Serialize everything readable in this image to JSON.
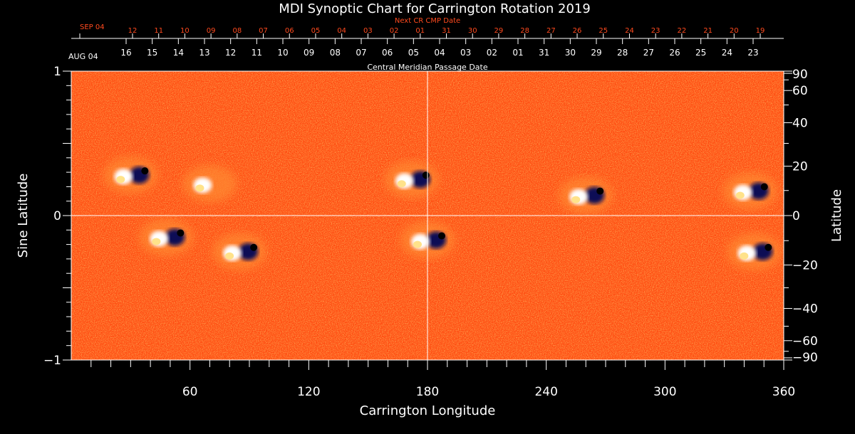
{
  "chart_data": {
    "type": "heatmap",
    "title": "MDI Synoptic Chart for Carrington Rotation 2019",
    "xlabel": "Carrington Longitude",
    "ylabel_left": "Sine Latitude",
    "ylabel_right": "Latitude",
    "xlim": [
      0,
      360
    ],
    "ylim": [
      -1,
      1
    ],
    "x_ticks": [
      60,
      120,
      180,
      240,
      300,
      360
    ],
    "x_minor_step": 10,
    "y_left_ticks": [
      {
        "value": 1,
        "label": "1"
      },
      {
        "value": 0,
        "label": "0"
      },
      {
        "value": -1,
        "label": "−1"
      }
    ],
    "y_right_ticks": [
      {
        "deg": 90,
        "label": "90"
      },
      {
        "deg": 60,
        "label": "60"
      },
      {
        "deg": 40,
        "label": "40"
      },
      {
        "deg": 20,
        "label": "20"
      },
      {
        "deg": 0,
        "label": "0"
      },
      {
        "deg": -20,
        "label": "−20"
      },
      {
        "deg": -40,
        "label": "−40"
      },
      {
        "deg": -60,
        "label": "−60"
      },
      {
        "deg": -90,
        "label": "−90"
      }
    ],
    "crosshair": {
      "longitude": 180,
      "sine_latitude": 0
    },
    "top_axis_upper": {
      "title": "Next CR CMP Date",
      "start_label": "SEP 04",
      "days": [
        "12",
        "11",
        "10",
        "09",
        "08",
        "07",
        "06",
        "05",
        "04",
        "03",
        "02",
        "01",
        "31",
        "30",
        "29",
        "28",
        "27",
        "26",
        "25",
        "24",
        "23",
        "22",
        "21",
        "20",
        "19"
      ],
      "color": "#ff4a1e"
    },
    "top_axis_lower": {
      "title": "Central Meridian Passage Date",
      "start_label": "AUG 04",
      "days": [
        "16",
        "15",
        "14",
        "13",
        "12",
        "11",
        "10",
        "09",
        "08",
        "07",
        "06",
        "05",
        "04",
        "03",
        "02",
        "01",
        "31",
        "30",
        "29",
        "28",
        "27",
        "26",
        "25",
        "24",
        "23"
      ],
      "color": "#ffffff"
    },
    "active_regions": [
      {
        "lon": 30,
        "sinlat": 0.28,
        "polarity": "bipolar"
      },
      {
        "lon": 70,
        "sinlat": 0.22,
        "polarity": "positive"
      },
      {
        "lon": 48,
        "sinlat": -0.15,
        "polarity": "bipolar"
      },
      {
        "lon": 85,
        "sinlat": -0.25,
        "polarity": "bipolar"
      },
      {
        "lon": 172,
        "sinlat": 0.25,
        "polarity": "bipolar"
      },
      {
        "lon": 180,
        "sinlat": -0.17,
        "polarity": "bipolar"
      },
      {
        "lon": 260,
        "sinlat": 0.14,
        "polarity": "bipolar"
      },
      {
        "lon": 343,
        "sinlat": 0.17,
        "polarity": "bipolar"
      },
      {
        "lon": 345,
        "sinlat": -0.25,
        "polarity": "bipolar"
      }
    ],
    "colors": {
      "background": "#ff4a10",
      "positive": "#ffffff",
      "negative": "#0a0a55",
      "grid": "#ffffff"
    }
  }
}
